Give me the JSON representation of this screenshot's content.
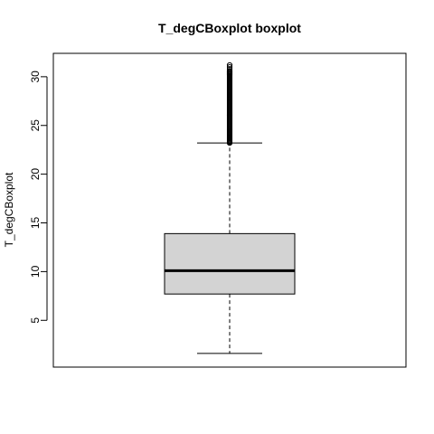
{
  "chart_data": {
    "type": "boxplot",
    "title": "T_degCBoxplot boxplot",
    "xlabel": "",
    "ylabel": "T_degCBoxplot",
    "ylim": [
      0.2,
      32.4
    ],
    "y_ticks": [
      5,
      10,
      15,
      20,
      25,
      30
    ],
    "grid": false,
    "box": {
      "whisker_low": 1.6,
      "q1": 7.7,
      "median": 10.1,
      "q3": 13.9,
      "whisker_high": 23.2,
      "box_fill": "#d3d3d3"
    },
    "outliers": {
      "dense_range": [
        23.2,
        30.6
      ],
      "sparse": [
        30.8,
        31.0,
        31.2
      ]
    }
  }
}
